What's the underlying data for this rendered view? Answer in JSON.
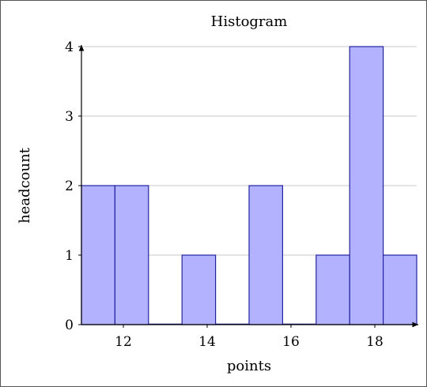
{
  "chart_data": {
    "type": "bar",
    "title": "Histogram",
    "xlabel": "points",
    "ylabel": "headcount",
    "xlim": [
      11,
      19
    ],
    "ylim": [
      0,
      4
    ],
    "x_ticks": [
      12,
      14,
      16,
      18
    ],
    "y_ticks": [
      0,
      1,
      2,
      3,
      4
    ],
    "grid": "horizontal",
    "bins": [
      {
        "x0": 11.0,
        "x1": 11.8,
        "value": 2
      },
      {
        "x0": 11.8,
        "x1": 12.6,
        "value": 2
      },
      {
        "x0": 12.6,
        "x1": 13.4,
        "value": 0
      },
      {
        "x0": 13.4,
        "x1": 14.2,
        "value": 1
      },
      {
        "x0": 14.2,
        "x1": 15.0,
        "value": 0
      },
      {
        "x0": 15.0,
        "x1": 15.8,
        "value": 2
      },
      {
        "x0": 15.8,
        "x1": 16.6,
        "value": 0
      },
      {
        "x0": 16.6,
        "x1": 17.4,
        "value": 1
      },
      {
        "x0": 17.4,
        "x1": 18.2,
        "value": 4
      },
      {
        "x0": 18.2,
        "x1": 19.0,
        "value": 1
      }
    ],
    "colors": {
      "bar_fill": "#b2b2ff",
      "bar_stroke": "#2323a0",
      "grid": "#c8c8c8",
      "axis": "#000000"
    }
  }
}
